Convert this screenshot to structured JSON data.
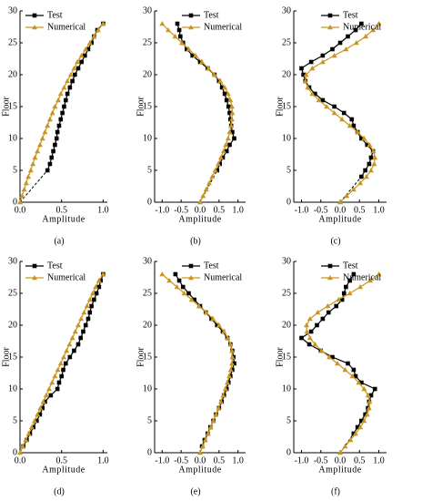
{
  "chart_data": [
    {
      "type": "line",
      "label": "(a)",
      "xlabel": "Amplitude",
      "ylabel": "Floor",
      "xlim": [
        0,
        1.05
      ],
      "xticks": [
        {
          "value": 0,
          "label": "0.0"
        },
        {
          "value": 0.5,
          "label": "0.5"
        },
        {
          "value": 1,
          "label": "1.0"
        }
      ],
      "ylim": [
        0,
        30
      ],
      "yticks": [
        0,
        5,
        10,
        15,
        20,
        25,
        30
      ],
      "legend": "upper left",
      "series": [
        {
          "name": "Test",
          "color": "#000000",
          "marker": "square",
          "dashed_first_segment": true,
          "y": [
            0,
            5,
            6,
            7,
            8,
            9,
            10,
            11,
            12,
            13,
            14,
            15,
            16,
            17,
            18,
            19,
            20,
            21,
            22,
            23,
            24,
            25,
            26,
            27,
            28
          ],
          "values": [
            0,
            0.33,
            0.36,
            0.38,
            0.4,
            0.42,
            0.44,
            0.45,
            0.47,
            0.49,
            0.51,
            0.53,
            0.55,
            0.57,
            0.6,
            0.63,
            0.66,
            0.7,
            0.74,
            0.78,
            0.82,
            0.86,
            0.89,
            0.93,
            1.0
          ]
        },
        {
          "name": "Numerical",
          "color": "#c8961e",
          "marker": "triangle",
          "dashed_first_segment": false,
          "y": [
            0,
            1,
            2,
            3,
            4,
            5,
            6,
            7,
            8,
            9,
            10,
            11,
            12,
            13,
            14,
            15,
            16,
            17,
            18,
            19,
            20,
            21,
            22,
            23,
            24,
            25,
            26,
            27,
            28
          ],
          "values": [
            0,
            0.025,
            0.05,
            0.075,
            0.1,
            0.13,
            0.155,
            0.18,
            0.21,
            0.24,
            0.27,
            0.3,
            0.33,
            0.36,
            0.39,
            0.42,
            0.46,
            0.49,
            0.53,
            0.57,
            0.61,
            0.65,
            0.69,
            0.74,
            0.79,
            0.84,
            0.89,
            0.94,
            1.0
          ]
        }
      ]
    },
    {
      "type": "line",
      "label": "(b)",
      "xlabel": "Amplitude",
      "ylabel": "Floor",
      "xlim": [
        -1.2,
        1.2
      ],
      "xticks": [
        {
          "value": -1,
          "label": "-1.0"
        },
        {
          "value": -0.5,
          "label": "-0.5"
        },
        {
          "value": 0,
          "label": "0.0"
        },
        {
          "value": 0.5,
          "label": "0.5"
        },
        {
          "value": 1,
          "label": "1.0"
        }
      ],
      "ylim": [
        0,
        30
      ],
      "yticks": [
        0,
        5,
        10,
        15,
        20,
        25,
        30
      ],
      "legend": "upper left",
      "series": [
        {
          "name": "Test",
          "color": "#000000",
          "marker": "square",
          "dashed_first_segment": true,
          "y": [
            0,
            5,
            6,
            7,
            8,
            9,
            10,
            11,
            12,
            13,
            14,
            15,
            16,
            17,
            18,
            19,
            20,
            21,
            22,
            23,
            24,
            25,
            26,
            27,
            28
          ],
          "values": [
            0,
            0.45,
            0.52,
            0.6,
            0.7,
            0.78,
            0.9,
            0.85,
            0.82,
            0.8,
            0.78,
            0.75,
            0.7,
            0.65,
            0.58,
            0.5,
            0.38,
            0.2,
            0.0,
            -0.2,
            -0.35,
            -0.45,
            -0.52,
            -0.55,
            -0.6
          ]
        },
        {
          "name": "Numerical",
          "color": "#c8961e",
          "marker": "triangle",
          "dashed_first_segment": false,
          "y": [
            0,
            1,
            2,
            3,
            4,
            5,
            6,
            7,
            8,
            9,
            10,
            11,
            12,
            13,
            14,
            15,
            16,
            17,
            18,
            19,
            20,
            21,
            22,
            23,
            24,
            25,
            26,
            27,
            28
          ],
          "values": [
            0,
            0.08,
            0.16,
            0.24,
            0.32,
            0.4,
            0.48,
            0.55,
            0.62,
            0.68,
            0.74,
            0.78,
            0.82,
            0.84,
            0.85,
            0.84,
            0.8,
            0.74,
            0.65,
            0.53,
            0.38,
            0.22,
            0.05,
            -0.12,
            -0.3,
            -0.48,
            -0.66,
            -0.84,
            -1.0
          ]
        }
      ]
    },
    {
      "type": "line",
      "label": "(c)",
      "xlabel": "Amplitude",
      "ylabel": "Floor",
      "xlim": [
        -1.2,
        1.2
      ],
      "xticks": [
        {
          "value": -1,
          "label": "-1.0"
        },
        {
          "value": -0.5,
          "label": "-0.5"
        },
        {
          "value": 0,
          "label": "0.0"
        },
        {
          "value": 0.5,
          "label": "0.5"
        },
        {
          "value": 1,
          "label": "1.0"
        }
      ],
      "ylim": [
        0,
        30
      ],
      "yticks": [
        0,
        5,
        10,
        15,
        20,
        25,
        30
      ],
      "legend": "upper left",
      "series": [
        {
          "name": "Test",
          "color": "#000000",
          "marker": "square",
          "dashed_first_segment": true,
          "y": [
            0,
            4,
            5,
            6,
            7,
            8,
            9,
            10,
            11,
            12,
            13,
            14,
            15,
            16,
            17,
            18,
            19,
            20,
            21,
            22,
            23,
            24,
            25,
            26,
            27,
            28
          ],
          "values": [
            0,
            0.55,
            0.65,
            0.75,
            0.8,
            0.85,
            0.7,
            0.55,
            0.45,
            0.35,
            0.3,
            0.1,
            -0.15,
            -0.45,
            -0.65,
            -0.8,
            -0.9,
            -0.95,
            -1.0,
            -0.75,
            -0.45,
            -0.2,
            0.0,
            0.2,
            0.4,
            0.55
          ]
        },
        {
          "name": "Numerical",
          "color": "#c8961e",
          "marker": "triangle",
          "dashed_first_segment": false,
          "y": [
            0,
            1,
            2,
            3,
            4,
            5,
            6,
            7,
            8,
            9,
            10,
            11,
            12,
            13,
            14,
            15,
            16,
            17,
            18,
            19,
            20,
            21,
            22,
            23,
            24,
            25,
            26,
            27,
            28
          ],
          "values": [
            0,
            0.17,
            0.35,
            0.52,
            0.68,
            0.8,
            0.88,
            0.9,
            0.86,
            0.76,
            0.62,
            0.45,
            0.25,
            0.05,
            -0.15,
            -0.35,
            -0.55,
            -0.72,
            -0.84,
            -0.9,
            -0.88,
            -0.72,
            -0.45,
            -0.15,
            0.15,
            0.42,
            0.66,
            0.85,
            1.0
          ]
        }
      ]
    },
    {
      "type": "line",
      "label": "(d)",
      "xlabel": "Amplitude",
      "ylabel": "Floor",
      "xlim": [
        0,
        1.05
      ],
      "xticks": [
        {
          "value": 0,
          "label": "0.0"
        },
        {
          "value": 0.5,
          "label": "0.5"
        },
        {
          "value": 1,
          "label": "1.0"
        }
      ],
      "ylim": [
        0,
        30
      ],
      "yticks": [
        0,
        5,
        10,
        15,
        20,
        25,
        30
      ],
      "legend": "upper left",
      "series": [
        {
          "name": "Test",
          "color": "#000000",
          "marker": "square",
          "dashed_first_segment": true,
          "y": [
            0,
            1,
            2,
            3,
            4,
            5,
            6,
            7,
            8,
            9,
            10,
            11,
            12,
            13,
            14,
            15,
            16,
            17,
            18,
            19,
            20,
            21,
            22,
            23,
            24,
            25,
            26,
            27,
            28
          ],
          "values": [
            0,
            0.04,
            0.08,
            0.12,
            0.16,
            0.2,
            0.24,
            0.27,
            0.3,
            0.37,
            0.45,
            0.47,
            0.5,
            0.52,
            0.55,
            0.6,
            0.65,
            0.7,
            0.73,
            0.76,
            0.79,
            0.82,
            0.84,
            0.86,
            0.89,
            0.92,
            0.95,
            0.97,
            1.0
          ]
        },
        {
          "name": "Numerical",
          "color": "#c8961e",
          "marker": "triangle",
          "dashed_first_segment": false,
          "y": [
            0,
            1,
            2,
            3,
            4,
            5,
            6,
            7,
            8,
            9,
            10,
            11,
            12,
            13,
            14,
            15,
            16,
            17,
            18,
            19,
            20,
            21,
            22,
            23,
            24,
            25,
            26,
            27,
            28
          ],
          "values": [
            0,
            0.035,
            0.07,
            0.105,
            0.14,
            0.175,
            0.21,
            0.245,
            0.28,
            0.315,
            0.35,
            0.385,
            0.42,
            0.455,
            0.49,
            0.525,
            0.56,
            0.595,
            0.63,
            0.665,
            0.7,
            0.735,
            0.77,
            0.805,
            0.84,
            0.875,
            0.91,
            0.95,
            1.0
          ]
        }
      ]
    },
    {
      "type": "line",
      "label": "(e)",
      "xlabel": "Amplitude",
      "ylabel": "Floor",
      "xlim": [
        -1.2,
        1.2
      ],
      "xticks": [
        {
          "value": -1,
          "label": "-1.0"
        },
        {
          "value": -0.5,
          "label": "-0.5"
        },
        {
          "value": 0,
          "label": "0.0"
        },
        {
          "value": 0.5,
          "label": "0.5"
        },
        {
          "value": 1,
          "label": "1.0"
        }
      ],
      "ylim": [
        0,
        30
      ],
      "yticks": [
        0,
        5,
        10,
        15,
        20,
        25,
        30
      ],
      "legend": "upper left",
      "series": [
        {
          "name": "Test",
          "color": "#000000",
          "marker": "square",
          "dashed_first_segment": true,
          "y": [
            0,
            1,
            2,
            3,
            4,
            5,
            6,
            7,
            8,
            9,
            10,
            11,
            12,
            13,
            14,
            15,
            16,
            17,
            18,
            19,
            20,
            21,
            22,
            23,
            24,
            25,
            26,
            27,
            28
          ],
          "values": [
            0,
            0.05,
            0.12,
            0.2,
            0.27,
            0.35,
            0.42,
            0.5,
            0.57,
            0.63,
            0.7,
            0.75,
            0.8,
            0.85,
            0.9,
            0.88,
            0.85,
            0.8,
            0.72,
            0.6,
            0.45,
            0.3,
            0.15,
            0.0,
            -0.15,
            -0.3,
            -0.45,
            -0.55,
            -0.65
          ]
        },
        {
          "name": "Numerical",
          "color": "#c8961e",
          "marker": "triangle",
          "dashed_first_segment": false,
          "y": [
            0,
            1,
            2,
            3,
            4,
            5,
            6,
            7,
            8,
            9,
            10,
            11,
            12,
            13,
            14,
            15,
            16,
            17,
            18,
            19,
            20,
            21,
            22,
            23,
            24,
            25,
            26,
            27,
            28
          ],
          "values": [
            0,
            0.07,
            0.14,
            0.21,
            0.28,
            0.35,
            0.42,
            0.49,
            0.55,
            0.61,
            0.67,
            0.72,
            0.77,
            0.81,
            0.84,
            0.85,
            0.84,
            0.8,
            0.73,
            0.63,
            0.5,
            0.34,
            0.16,
            -0.03,
            -0.22,
            -0.42,
            -0.61,
            -0.81,
            -1.0
          ]
        }
      ]
    },
    {
      "type": "line",
      "label": "(f)",
      "xlabel": "Amplitude",
      "ylabel": "Floor",
      "xlim": [
        -1.2,
        1.2
      ],
      "xticks": [
        {
          "value": -1,
          "label": "-1.0"
        },
        {
          "value": -0.5,
          "label": "-0.5"
        },
        {
          "value": 0,
          "label": "0.0"
        },
        {
          "value": 0.5,
          "label": "0.5"
        },
        {
          "value": 1,
          "label": "1.0"
        }
      ],
      "ylim": [
        0,
        30
      ],
      "yticks": [
        0,
        5,
        10,
        15,
        20,
        25,
        30
      ],
      "legend": "upper left",
      "series": [
        {
          "name": "Test",
          "color": "#000000",
          "marker": "square",
          "dashed_first_segment": true,
          "y": [
            0,
            3,
            4,
            5,
            6,
            7,
            8,
            9,
            10,
            11,
            12,
            13,
            14,
            15,
            16,
            17,
            18,
            19,
            20,
            21,
            22,
            23,
            24,
            25,
            26,
            27,
            28
          ],
          "values": [
            0,
            0.35,
            0.45,
            0.55,
            0.65,
            0.72,
            0.75,
            0.8,
            0.9,
            0.55,
            0.4,
            0.35,
            0.2,
            -0.2,
            -0.5,
            -0.8,
            -1.0,
            -0.75,
            -0.6,
            -0.45,
            -0.3,
            -0.1,
            0.05,
            0.1,
            0.15,
            0.25,
            0.35
          ]
        },
        {
          "name": "Numerical",
          "color": "#c8961e",
          "marker": "triangle",
          "dashed_first_segment": false,
          "y": [
            0,
            1,
            2,
            3,
            4,
            5,
            6,
            7,
            8,
            9,
            10,
            11,
            12,
            13,
            14,
            15,
            16,
            17,
            18,
            19,
            20,
            21,
            22,
            23,
            24,
            25,
            26,
            27,
            28
          ],
          "values": [
            0,
            0.13,
            0.27,
            0.4,
            0.52,
            0.62,
            0.7,
            0.75,
            0.76,
            0.72,
            0.62,
            0.48,
            0.32,
            0.13,
            -0.07,
            -0.28,
            -0.48,
            -0.65,
            -0.78,
            -0.86,
            -0.87,
            -0.78,
            -0.58,
            -0.32,
            -0.04,
            0.25,
            0.52,
            0.78,
            1.0
          ]
        }
      ]
    }
  ]
}
